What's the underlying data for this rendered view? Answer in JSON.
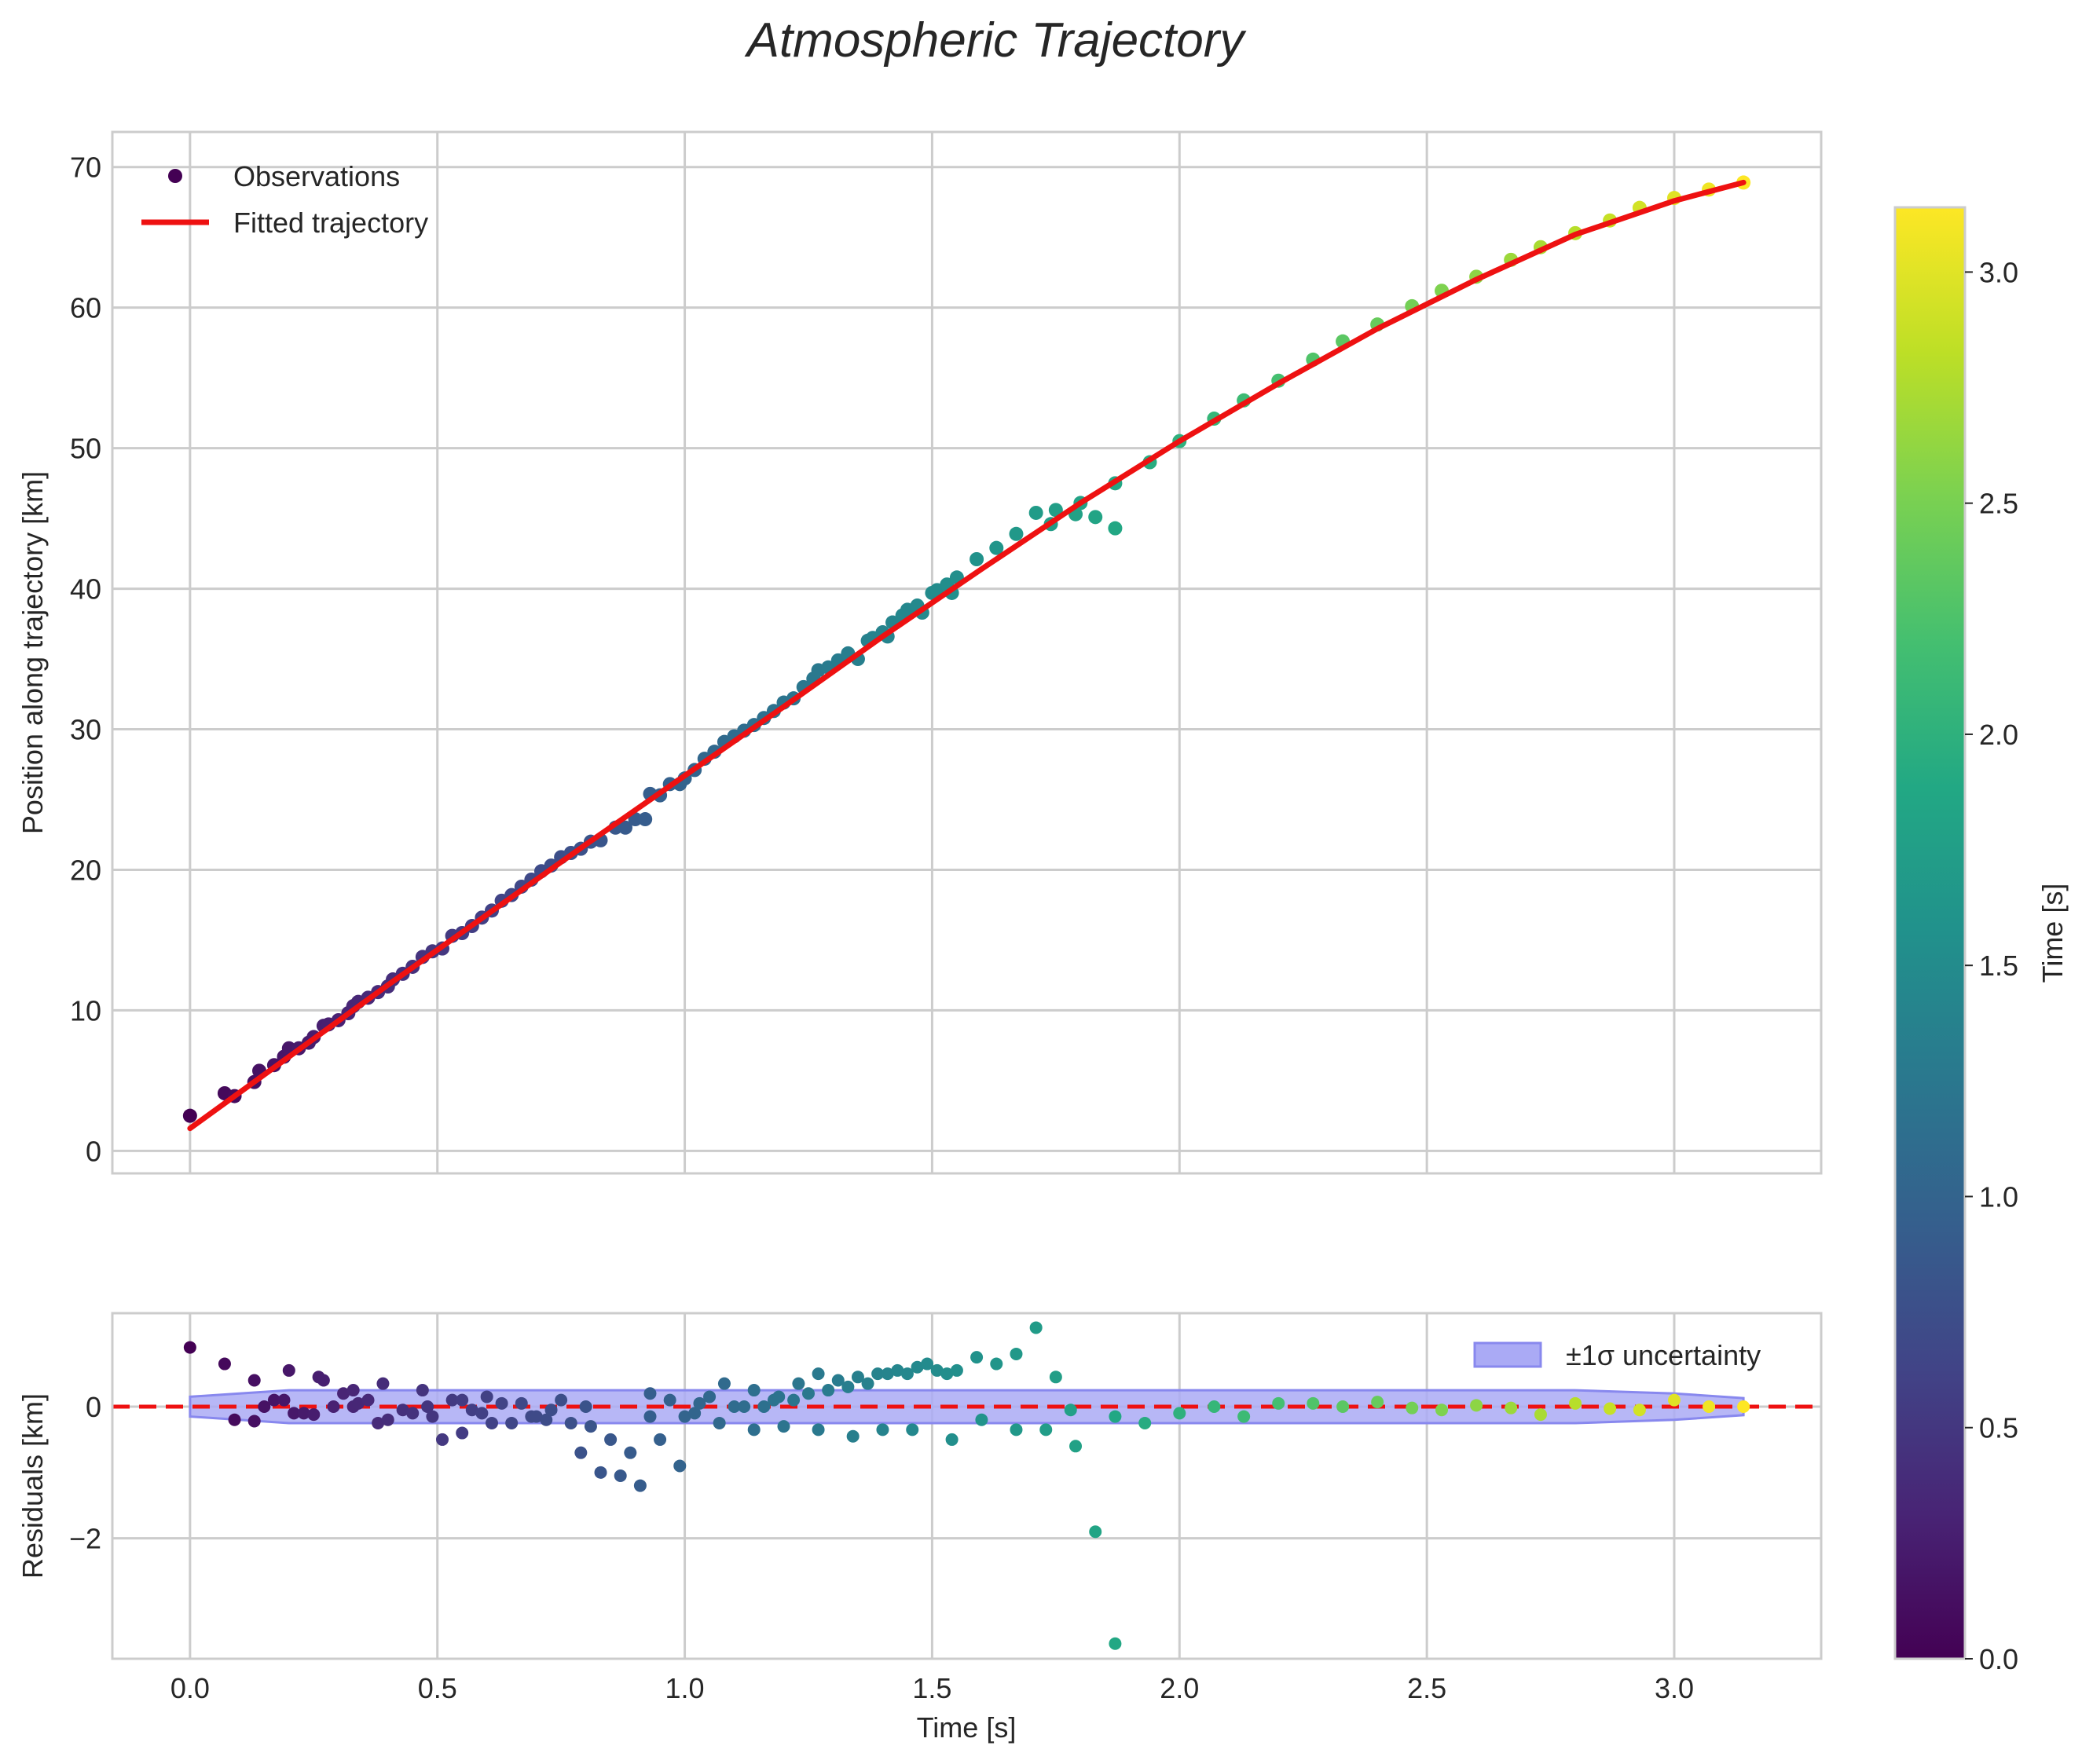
{
  "title": "Atmospheric Trajectory",
  "colors": {
    "fit_line": "#ee1111",
    "band_fill": "#aaaaf5",
    "band_edge": "#8888ee",
    "zero_line": "#ee1111",
    "grid": "#cccccc",
    "axes_edge": "#cccccc"
  },
  "colorbar": {
    "label": "Time [s]",
    "range": [
      0,
      3.14
    ],
    "ticks": [
      "0.0",
      "0.5",
      "1.0",
      "1.5",
      "2.0",
      "2.5",
      "3.0"
    ],
    "tick_values": [
      0,
      0.5,
      1.0,
      1.5,
      2.0,
      2.5,
      3.0
    ],
    "colormap": "viridis"
  },
  "chart_data": [
    {
      "type": "scatter",
      "panel": "main",
      "xlabel": "",
      "ylabel": "Position along trajectory [km]",
      "xlim": [
        -0.157,
        3.297
      ],
      "ylim": [
        -1.6,
        72.5
      ],
      "grid": true,
      "legend_position": "top-left",
      "legend": [
        "Observations",
        "Fitted trajectory"
      ],
      "x_ticks": [
        0.0,
        0.5,
        1.0,
        1.5,
        2.0,
        2.5,
        3.0
      ],
      "y_ticks": [
        "0",
        "10",
        "20",
        "30",
        "40",
        "50",
        "60",
        "70"
      ],
      "y_tick_values": [
        0,
        10,
        20,
        30,
        40,
        50,
        60,
        70
      ],
      "series": [
        {
          "name": "Observations",
          "points": [
            [
              0.0,
              2.5
            ],
            [
              0.07,
              4.1
            ],
            [
              0.09,
              3.9
            ],
            [
              0.13,
              4.9
            ],
            [
              0.14,
              5.7
            ],
            [
              0.17,
              6.1
            ],
            [
              0.19,
              6.7
            ],
            [
              0.2,
              7.3
            ],
            [
              0.22,
              7.3
            ],
            [
              0.24,
              7.7
            ],
            [
              0.25,
              8.1
            ],
            [
              0.27,
              8.9
            ],
            [
              0.28,
              9.0
            ],
            [
              0.3,
              9.3
            ],
            [
              0.32,
              9.8
            ],
            [
              0.33,
              10.3
            ],
            [
              0.34,
              10.6
            ],
            [
              0.36,
              10.9
            ],
            [
              0.38,
              11.3
            ],
            [
              0.4,
              11.7
            ],
            [
              0.41,
              12.2
            ],
            [
              0.43,
              12.6
            ],
            [
              0.45,
              13.1
            ],
            [
              0.47,
              13.8
            ],
            [
              0.49,
              14.2
            ],
            [
              0.51,
              14.4
            ],
            [
              0.53,
              15.3
            ],
            [
              0.55,
              15.5
            ],
            [
              0.57,
              16.0
            ],
            [
              0.59,
              16.6
            ],
            [
              0.61,
              17.1
            ],
            [
              0.63,
              17.8
            ],
            [
              0.65,
              18.2
            ],
            [
              0.67,
              18.8
            ],
            [
              0.69,
              19.3
            ],
            [
              0.71,
              19.9
            ],
            [
              0.73,
              20.3
            ],
            [
              0.75,
              20.9
            ],
            [
              0.77,
              21.2
            ],
            [
              0.79,
              21.5
            ],
            [
              0.81,
              22.0
            ],
            [
              0.83,
              22.1
            ],
            [
              0.86,
              23.0
            ],
            [
              0.88,
              23.0
            ],
            [
              0.9,
              23.6
            ],
            [
              0.92,
              23.6
            ],
            [
              0.93,
              25.4
            ],
            [
              0.95,
              25.3
            ],
            [
              0.97,
              26.1
            ],
            [
              0.99,
              26.1
            ],
            [
              1.0,
              26.5
            ],
            [
              1.02,
              27.1
            ],
            [
              1.04,
              27.9
            ],
            [
              1.06,
              28.4
            ],
            [
              1.08,
              29.1
            ],
            [
              1.1,
              29.5
            ],
            [
              1.12,
              29.9
            ],
            [
              1.14,
              30.3
            ],
            [
              1.16,
              30.8
            ],
            [
              1.18,
              31.3
            ],
            [
              1.2,
              31.9
            ],
            [
              1.22,
              32.2
            ],
            [
              1.24,
              33.0
            ],
            [
              1.26,
              33.6
            ],
            [
              1.27,
              34.2
            ],
            [
              1.29,
              34.4
            ],
            [
              1.31,
              34.9
            ],
            [
              1.33,
              35.4
            ],
            [
              1.35,
              35.0
            ],
            [
              1.37,
              36.3
            ],
            [
              1.38,
              36.5
            ],
            [
              1.4,
              36.9
            ],
            [
              1.41,
              36.6
            ],
            [
              1.42,
              37.6
            ],
            [
              1.44,
              38.1
            ],
            [
              1.45,
              38.5
            ],
            [
              1.47,
              38.8
            ],
            [
              1.48,
              38.3
            ],
            [
              1.5,
              39.7
            ],
            [
              1.51,
              39.9
            ],
            [
              1.53,
              40.3
            ],
            [
              1.54,
              39.7
            ],
            [
              1.55,
              40.8
            ],
            [
              1.59,
              42.1
            ],
            [
              1.63,
              42.9
            ],
            [
              1.67,
              43.9
            ],
            [
              1.71,
              45.4
            ],
            [
              1.74,
              44.6
            ],
            [
              1.75,
              45.6
            ],
            [
              1.79,
              45.3
            ],
            [
              1.8,
              46.1
            ],
            [
              1.83,
              45.1
            ],
            [
              1.87,
              44.3
            ],
            [
              1.87,
              47.5
            ],
            [
              1.94,
              49.0
            ],
            [
              2.0,
              50.5
            ],
            [
              2.07,
              52.1
            ],
            [
              2.13,
              53.4
            ],
            [
              2.2,
              54.8
            ],
            [
              2.27,
              56.3
            ],
            [
              2.33,
              57.6
            ],
            [
              2.4,
              58.8
            ],
            [
              2.47,
              60.1
            ],
            [
              2.53,
              61.2
            ],
            [
              2.6,
              62.2
            ],
            [
              2.67,
              63.4
            ],
            [
              2.73,
              64.3
            ],
            [
              2.8,
              65.3
            ],
            [
              2.87,
              66.2
            ],
            [
              2.93,
              67.1
            ],
            [
              3.0,
              67.8
            ],
            [
              3.07,
              68.4
            ],
            [
              3.14,
              68.9
            ]
          ]
        },
        {
          "name": "Fitted trajectory",
          "points": [
            [
              0.0,
              1.6
            ],
            [
              0.2,
              6.7
            ],
            [
              0.4,
              11.8
            ],
            [
              0.6,
              16.8
            ],
            [
              0.8,
              21.8
            ],
            [
              1.0,
              26.7
            ],
            [
              1.2,
              31.6
            ],
            [
              1.4,
              36.6
            ],
            [
              1.6,
              41.4
            ],
            [
              1.8,
              46.1
            ],
            [
              2.0,
              50.5
            ],
            [
              2.2,
              54.6
            ],
            [
              2.4,
              58.5
            ],
            [
              2.6,
              62.0
            ],
            [
              2.8,
              65.2
            ],
            [
              3.0,
              67.6
            ],
            [
              3.14,
              68.9
            ]
          ]
        }
      ]
    },
    {
      "type": "scatter",
      "panel": "residuals",
      "xlabel": "Time [s]",
      "ylabel": "Residuals [km]",
      "xlim": [
        -0.157,
        3.297
      ],
      "ylim": [
        -3.83,
        1.42
      ],
      "grid": true,
      "legend_position": "top-right",
      "legend": [
        "±1σ uncertainty"
      ],
      "x_ticks": [
        "0.0",
        "0.5",
        "1.0",
        "1.5",
        "2.0",
        "2.5",
        "3.0"
      ],
      "x_tick_values": [
        0.0,
        0.5,
        1.0,
        1.5,
        2.0,
        2.5,
        3.0
      ],
      "y_ticks": [
        "−2",
        "0"
      ],
      "y_tick_values": [
        -2,
        0
      ],
      "zero_line": 0,
      "uncertainty_band": {
        "x": [
          0.0,
          0.1,
          0.2,
          0.4,
          0.7,
          1.0,
          1.5,
          2.0,
          2.5,
          2.8,
          3.0,
          3.14
        ],
        "lower": [
          -0.15,
          -0.2,
          -0.25,
          -0.25,
          -0.25,
          -0.25,
          -0.25,
          -0.25,
          -0.25,
          -0.25,
          -0.2,
          -0.13
        ],
        "upper": [
          0.15,
          0.2,
          0.25,
          0.25,
          0.25,
          0.25,
          0.25,
          0.25,
          0.25,
          0.25,
          0.2,
          0.13
        ]
      },
      "residuals": [
        [
          0.0,
          0.9
        ],
        [
          0.07,
          0.65
        ],
        [
          0.09,
          -0.2
        ],
        [
          0.13,
          -0.22
        ],
        [
          0.13,
          0.4
        ],
        [
          0.15,
          0.0
        ],
        [
          0.17,
          0.1
        ],
        [
          0.19,
          0.1
        ],
        [
          0.2,
          0.55
        ],
        [
          0.21,
          -0.1
        ],
        [
          0.23,
          -0.1
        ],
        [
          0.25,
          -0.12
        ],
        [
          0.26,
          0.45
        ],
        [
          0.27,
          0.4
        ],
        [
          0.29,
          0.0
        ],
        [
          0.31,
          0.2
        ],
        [
          0.33,
          0.25
        ],
        [
          0.33,
          0.0
        ],
        [
          0.34,
          0.05
        ],
        [
          0.36,
          0.1
        ],
        [
          0.38,
          -0.25
        ],
        [
          0.39,
          0.35
        ],
        [
          0.4,
          -0.2
        ],
        [
          0.43,
          -0.05
        ],
        [
          0.45,
          -0.1
        ],
        [
          0.47,
          0.25
        ],
        [
          0.48,
          0.0
        ],
        [
          0.49,
          -0.15
        ],
        [
          0.51,
          -0.5
        ],
        [
          0.53,
          0.1
        ],
        [
          0.55,
          -0.4
        ],
        [
          0.55,
          0.1
        ],
        [
          0.57,
          -0.05
        ],
        [
          0.59,
          -0.1
        ],
        [
          0.6,
          0.15
        ],
        [
          0.61,
          -0.25
        ],
        [
          0.63,
          0.05
        ],
        [
          0.65,
          -0.25
        ],
        [
          0.67,
          0.05
        ],
        [
          0.69,
          -0.15
        ],
        [
          0.7,
          -0.15
        ],
        [
          0.72,
          -0.2
        ],
        [
          0.73,
          -0.05
        ],
        [
          0.75,
          0.1
        ],
        [
          0.77,
          -0.25
        ],
        [
          0.79,
          -0.7
        ],
        [
          0.8,
          0.0
        ],
        [
          0.81,
          -0.3
        ],
        [
          0.83,
          -1.0
        ],
        [
          0.85,
          -0.5
        ],
        [
          0.87,
          -1.05
        ],
        [
          0.89,
          -0.7
        ],
        [
          0.91,
          -1.2
        ],
        [
          0.93,
          0.2
        ],
        [
          0.93,
          -0.15
        ],
        [
          0.95,
          -0.5
        ],
        [
          0.97,
          0.1
        ],
        [
          0.99,
          -0.9
        ],
        [
          1.0,
          -0.15
        ],
        [
          1.02,
          -0.1
        ],
        [
          1.03,
          0.05
        ],
        [
          1.05,
          0.15
        ],
        [
          1.07,
          -0.25
        ],
        [
          1.08,
          0.35
        ],
        [
          1.1,
          0.0
        ],
        [
          1.12,
          0.0
        ],
        [
          1.14,
          -0.35
        ],
        [
          1.14,
          0.25
        ],
        [
          1.16,
          0.0
        ],
        [
          1.18,
          0.1
        ],
        [
          1.19,
          0.15
        ],
        [
          1.2,
          -0.3
        ],
        [
          1.22,
          0.1
        ],
        [
          1.23,
          0.35
        ],
        [
          1.25,
          0.2
        ],
        [
          1.27,
          0.5
        ],
        [
          1.27,
          -0.35
        ],
        [
          1.29,
          0.25
        ],
        [
          1.31,
          0.4
        ],
        [
          1.33,
          0.3
        ],
        [
          1.34,
          -0.45
        ],
        [
          1.35,
          0.45
        ],
        [
          1.37,
          0.35
        ],
        [
          1.39,
          0.5
        ],
        [
          1.4,
          -0.35
        ],
        [
          1.41,
          0.5
        ],
        [
          1.43,
          0.55
        ],
        [
          1.45,
          0.5
        ],
        [
          1.46,
          -0.35
        ],
        [
          1.47,
          0.6
        ],
        [
          1.49,
          0.65
        ],
        [
          1.51,
          0.55
        ],
        [
          1.53,
          0.5
        ],
        [
          1.54,
          -0.5
        ],
        [
          1.55,
          0.55
        ],
        [
          1.59,
          0.75
        ],
        [
          1.6,
          -0.2
        ],
        [
          1.63,
          0.65
        ],
        [
          1.67,
          0.8
        ],
        [
          1.67,
          -0.35
        ],
        [
          1.71,
          1.2
        ],
        [
          1.73,
          -0.35
        ],
        [
          1.75,
          0.45
        ],
        [
          1.78,
          -0.05
        ],
        [
          1.79,
          -0.6
        ],
        [
          1.83,
          -1.9
        ],
        [
          1.87,
          -0.15
        ],
        [
          1.87,
          -3.6
        ],
        [
          1.93,
          -0.25
        ],
        [
          2.0,
          -0.1
        ],
        [
          2.07,
          0.0
        ],
        [
          2.13,
          -0.15
        ],
        [
          2.2,
          0.05
        ],
        [
          2.27,
          0.05
        ],
        [
          2.33,
          0.0
        ],
        [
          2.4,
          0.07
        ],
        [
          2.47,
          -0.02
        ],
        [
          2.53,
          -0.05
        ],
        [
          2.6,
          0.02
        ],
        [
          2.67,
          -0.02
        ],
        [
          2.73,
          -0.12
        ],
        [
          2.8,
          0.05
        ],
        [
          2.87,
          -0.03
        ],
        [
          2.93,
          -0.05
        ],
        [
          3.0,
          0.1
        ],
        [
          3.07,
          0.0
        ],
        [
          3.14,
          0.0
        ]
      ]
    }
  ]
}
